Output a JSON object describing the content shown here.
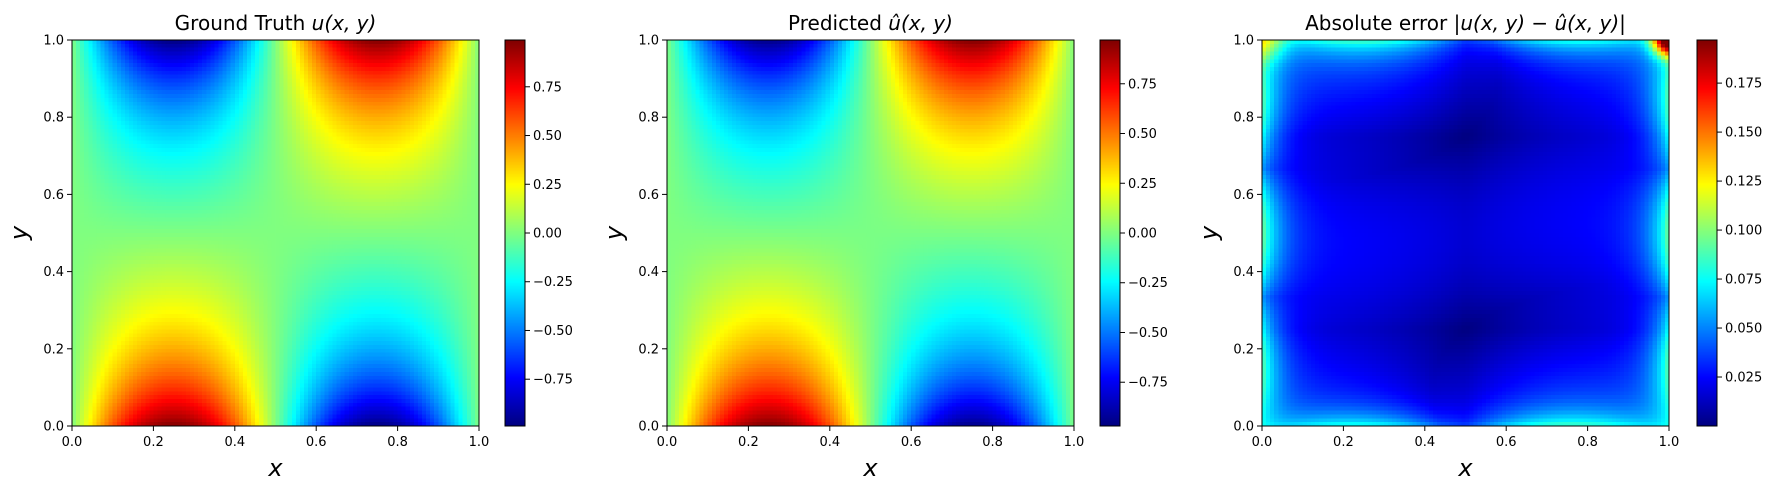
{
  "colormap": "jet",
  "chart_data": [
    {
      "type": "heatmap",
      "title": "Ground Truth u(x, y)",
      "title_parts": {
        "text": "Ground Truth ",
        "math": "u(x, y)"
      },
      "xlabel": "x",
      "ylabel": "y",
      "xlim": [
        0.0,
        1.0
      ],
      "ylim": [
        0.0,
        1.0
      ],
      "xticks": [
        "0.0",
        "0.2",
        "0.4",
        "0.6",
        "0.8",
        "1.0"
      ],
      "yticks": [
        "0.0",
        "0.2",
        "0.4",
        "0.6",
        "0.8",
        "1.0"
      ],
      "field": "exact",
      "grid": false,
      "colorbar": {
        "range": [
          -0.99,
          0.99
        ],
        "ticks": [
          -0.75,
          -0.5,
          -0.25,
          0.0,
          0.25,
          0.5,
          0.75
        ],
        "tick_labels": [
          "−0.75",
          "−0.50",
          "−0.25",
          "0.00",
          "0.25",
          "0.50",
          "0.75"
        ]
      }
    },
    {
      "type": "heatmap",
      "title": "Predicted û(x, y)",
      "title_parts": {
        "text": "Predicted ",
        "math": "û(x, y)"
      },
      "xlabel": "x",
      "ylabel": "y",
      "xlim": [
        0.0,
        1.0
      ],
      "ylim": [
        0.0,
        1.0
      ],
      "xticks": [
        "0.0",
        "0.2",
        "0.4",
        "0.6",
        "0.8",
        "1.0"
      ],
      "yticks": [
        "0.0",
        "0.2",
        "0.4",
        "0.6",
        "0.8",
        "1.0"
      ],
      "field": "predicted",
      "grid": false,
      "colorbar": {
        "range": [
          -0.97,
          0.97
        ],
        "ticks": [
          -0.75,
          -0.5,
          -0.25,
          0.0,
          0.25,
          0.5,
          0.75
        ],
        "tick_labels": [
          "−0.75",
          "−0.50",
          "−0.25",
          "0.00",
          "0.25",
          "0.50",
          "0.75"
        ]
      }
    },
    {
      "type": "heatmap",
      "title": "Absolute error |u(x, y) − û(x, y)|",
      "title_parts": {
        "text": "Absolute error ",
        "math": "|u(x, y) − û(x, y)|"
      },
      "xlabel": "x",
      "ylabel": "y",
      "xlim": [
        0.0,
        1.0
      ],
      "ylim": [
        0.0,
        1.0
      ],
      "xticks": [
        "0.0",
        "0.2",
        "0.4",
        "0.6",
        "0.8",
        "1.0"
      ],
      "yticks": [
        "0.0",
        "0.2",
        "0.4",
        "0.6",
        "0.8",
        "1.0"
      ],
      "field": "error",
      "grid": false,
      "colorbar": {
        "range": [
          0.0,
          0.197
        ],
        "ticks": [
          0.025,
          0.05,
          0.075,
          0.1,
          0.125,
          0.15,
          0.175
        ],
        "tick_labels": [
          "0.025",
          "0.050",
          "0.075",
          "0.100",
          "0.125",
          "0.150",
          "0.175"
        ]
      }
    }
  ]
}
